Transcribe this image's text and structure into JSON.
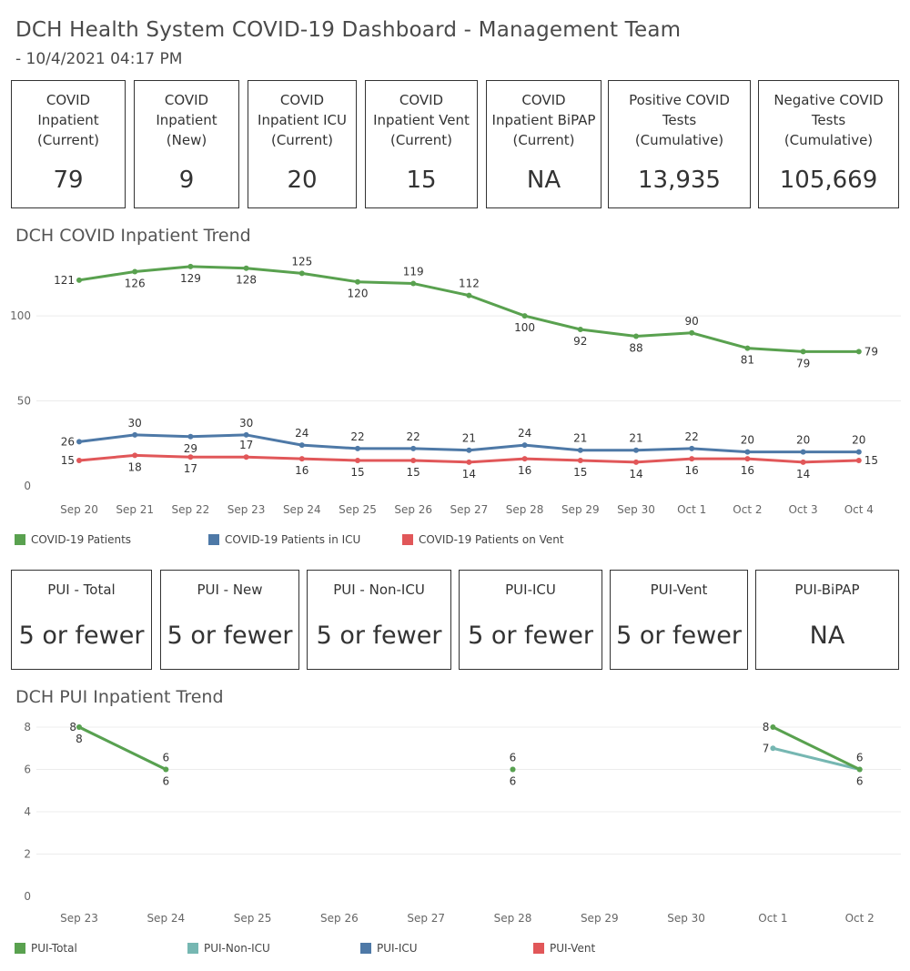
{
  "header": {
    "title": "DCH Health System COVID-19 Dashboard - Management Team",
    "subtitle": "- 10/4/2021 04:17 PM"
  },
  "kpis_top": [
    {
      "label": "COVID\nInpatient\n(Current)",
      "value": "79"
    },
    {
      "label": "COVID\nInpatient\n(New)",
      "value": "9"
    },
    {
      "label": "COVID\nInpatient ICU\n(Current)",
      "value": "20"
    },
    {
      "label": "COVID\nInpatient Vent\n(Current)",
      "value": "15"
    },
    {
      "label": "COVID\nInpatient BiPAP\n(Current)",
      "value": "NA"
    },
    {
      "label": "Positive COVID\nTests\n(Cumulative)",
      "value": "13,935"
    },
    {
      "label": "Negative COVID\nTests\n(Cumulative)",
      "value": "105,669"
    }
  ],
  "kpis_pui": [
    {
      "label": "PUI - Total",
      "value": "5 or fewer"
    },
    {
      "label": "PUI - New",
      "value": "5 or fewer"
    },
    {
      "label": "PUI - Non-ICU",
      "value": "5 or fewer"
    },
    {
      "label": "PUI-ICU",
      "value": "5 or fewer"
    },
    {
      "label": "PUI-Vent",
      "value": "5 or fewer"
    },
    {
      "label": "PUI-BiPAP",
      "value": "NA"
    }
  ],
  "sections": {
    "covid_trend_title": "DCH COVID Inpatient Trend",
    "pui_trend_title": "DCH PUI Inpatient Trend"
  },
  "colors": {
    "green": "#59a14f",
    "blue": "#4e79a7",
    "red": "#e15759",
    "teal": "#76b7b2",
    "grid": "#ececec"
  },
  "chart_data": [
    {
      "type": "line",
      "title": "DCH COVID Inpatient Trend",
      "categories": [
        "Sep 20",
        "Sep 21",
        "Sep 22",
        "Sep 23",
        "Sep 24",
        "Sep 25",
        "Sep 26",
        "Sep 27",
        "Sep 28",
        "Sep 29",
        "Sep 30",
        "Oct 1",
        "Oct 2",
        "Oct 3",
        "Oct 4"
      ],
      "yticks": [
        0,
        50,
        100
      ],
      "ylim": [
        0,
        130
      ],
      "grid": true,
      "legend_position": "bottom",
      "series": [
        {
          "name": "COVID-19 Patients",
          "color": "#59a14f",
          "values": [
            121,
            126,
            129,
            128,
            125,
            120,
            119,
            112,
            100,
            92,
            88,
            90,
            81,
            79,
            79
          ]
        },
        {
          "name": "COVID-19 Patients in ICU",
          "color": "#4e79a7",
          "values": [
            26,
            30,
            29,
            30,
            24,
            22,
            22,
            21,
            24,
            21,
            21,
            22,
            20,
            20,
            20
          ]
        },
        {
          "name": "COVID-19 Patients on Vent",
          "color": "#e15759",
          "values": [
            15,
            18,
            17,
            17,
            16,
            15,
            15,
            14,
            16,
            15,
            14,
            16,
            16,
            14,
            15
          ]
        }
      ]
    },
    {
      "type": "line",
      "title": "DCH PUI Inpatient Trend",
      "categories": [
        "Sep 23",
        "Sep 24",
        "Sep 25",
        "Sep 26",
        "Sep 27",
        "Sep 28",
        "Sep 29",
        "Sep 30",
        "Oct 1",
        "Oct 2"
      ],
      "yticks": [
        0,
        2,
        4,
        6,
        8
      ],
      "ylim": [
        0,
        8
      ],
      "grid": true,
      "legend_position": "bottom",
      "series": [
        {
          "name": "PUI-Total",
          "color": "#59a14f",
          "values": [
            8,
            6,
            null,
            null,
            null,
            6,
            null,
            null,
            8,
            6
          ]
        },
        {
          "name": "PUI-Non-ICU",
          "color": "#76b7b2",
          "values": [
            8,
            6,
            null,
            null,
            null,
            6,
            null,
            null,
            7,
            6
          ]
        },
        {
          "name": "PUI-ICU",
          "color": "#4e79a7",
          "values": [
            null,
            null,
            null,
            null,
            null,
            null,
            null,
            null,
            null,
            null
          ]
        },
        {
          "name": "PUI-Vent",
          "color": "#e15759",
          "values": [
            null,
            null,
            null,
            null,
            null,
            null,
            null,
            null,
            null,
            null
          ]
        }
      ]
    }
  ]
}
